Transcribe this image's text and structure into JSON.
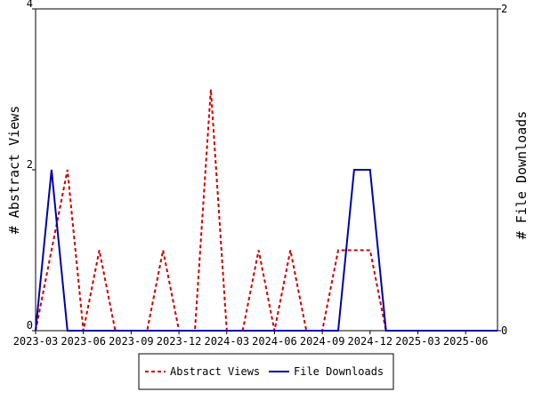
{
  "chart_data": {
    "type": "line",
    "x": [
      "2023-03",
      "2023-04",
      "2023-05",
      "2023-06",
      "2023-07",
      "2023-08",
      "2023-09",
      "2023-10",
      "2023-11",
      "2023-12",
      "2024-01",
      "2024-02",
      "2024-03",
      "2024-04",
      "2024-05",
      "2024-06",
      "2024-07",
      "2024-08",
      "2024-09",
      "2024-10",
      "2024-11",
      "2024-12",
      "2025-01",
      "2025-02",
      "2025-03",
      "2025-04",
      "2025-05",
      "2025-06",
      "2025-07",
      "2025-08"
    ],
    "x_tick_labels": [
      "2023-03",
      "2023-06",
      "2023-09",
      "2023-12",
      "2024-03",
      "2024-06",
      "2024-09",
      "2024-12",
      "2025-03",
      "2025-06"
    ],
    "series": [
      {
        "name": "Abstract Views",
        "axis": "left",
        "color": "#cc0000",
        "style": "dashed",
        "values": [
          0,
          1,
          2,
          0,
          1,
          0,
          0,
          0,
          1,
          0,
          0,
          3,
          0,
          0,
          1,
          0,
          1,
          0,
          0,
          1,
          1,
          1,
          0,
          0,
          0,
          0,
          0,
          0,
          0,
          0
        ]
      },
      {
        "name": "File Downloads",
        "axis": "right",
        "color": "#0000aa",
        "style": "solid",
        "values": [
          0,
          1,
          0,
          0,
          0,
          0,
          0,
          0,
          0,
          0,
          0,
          0,
          0,
          0,
          0,
          0,
          0,
          0,
          0,
          0,
          1,
          1,
          0,
          0,
          0,
          0,
          0,
          0,
          0,
          0
        ]
      }
    ],
    "ylabel_left": "# Abstract Views",
    "ylabel_right": "# File Downloads",
    "ylim_left": [
      0,
      4
    ],
    "ylim_right": [
      0,
      2
    ],
    "yticks_left": [
      "0",
      "2",
      "4"
    ],
    "yticks_right": [
      "0",
      "2"
    ],
    "legend_position": "bottom-center",
    "grid": false
  }
}
